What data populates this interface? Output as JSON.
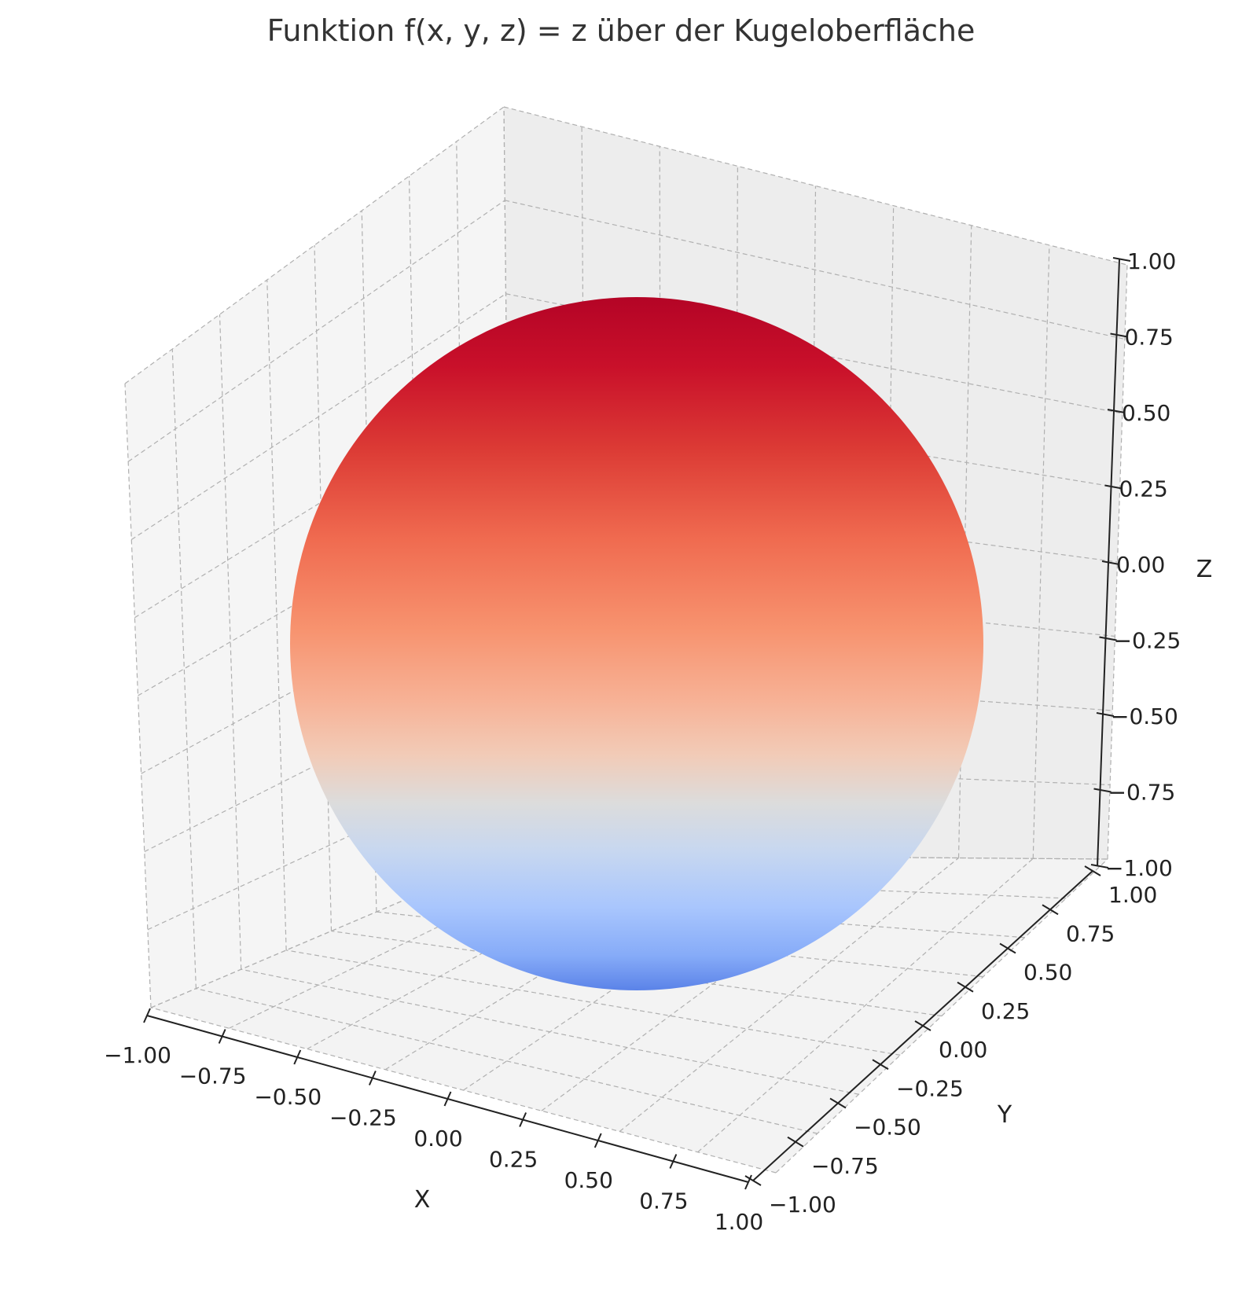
{
  "chart_data": {
    "type": "surface",
    "title": "Funktion f(x, y, z) = z über der Kugeloberfläche",
    "xlabel": "X",
    "ylabel": "Y",
    "zlabel": "Z",
    "x_ticks": [
      "−1.00",
      "−0.75",
      "−0.50",
      "−0.25",
      "0.00",
      "0.25",
      "0.50",
      "0.75",
      "1.00"
    ],
    "y_ticks": [
      "−1.00",
      "−0.75",
      "−0.50",
      "−0.25",
      "0.00",
      "0.25",
      "0.50",
      "0.75",
      "1.00"
    ],
    "z_ticks": [
      "−1.00",
      "−0.75",
      "−0.50",
      "−0.25",
      "0.00",
      "0.25",
      "0.50",
      "0.75",
      "1.00"
    ],
    "x_range": [
      -1,
      1
    ],
    "y_range": [
      -1,
      1
    ],
    "z_range": [
      -1,
      1
    ],
    "surface": "unit sphere x²+y²+z²=1",
    "color_value": "f(x,y,z)=z",
    "colormap": "coolwarm",
    "colormap_colors": [
      "#3b4cc0",
      "#7b9ff9",
      "#c0d4f5",
      "#dddddd",
      "#f2cbb7",
      "#ee8468",
      "#b40426"
    ],
    "grid": true,
    "pane_color": "#f2f2f2",
    "grid_color": "#b0b0b0"
  }
}
